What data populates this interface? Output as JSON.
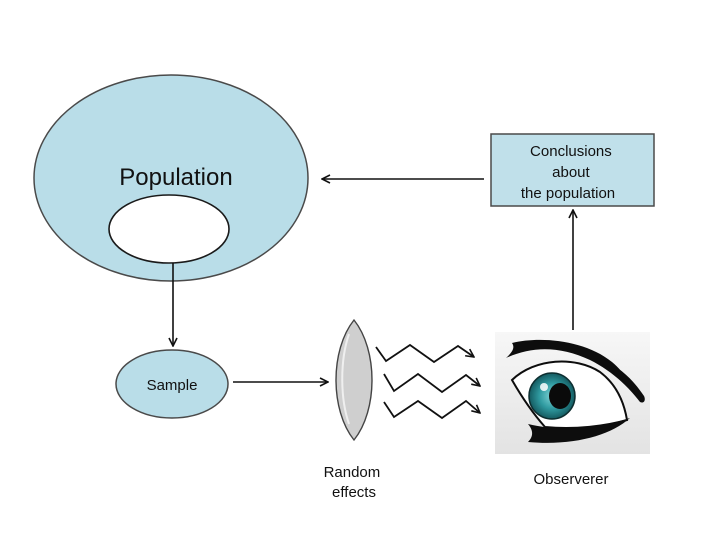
{
  "diagram": {
    "population_label": "Population",
    "sample_label": "Sample",
    "conclusions_lines": [
      "Conclusions",
      "about",
      "the population"
    ],
    "random_effects_lines": [
      "Random",
      "effects"
    ],
    "observer_label": "Observerer"
  },
  "colors": {
    "light_blue_fill": "#b9dde8",
    "box_fill": "#c0e0ea",
    "outline": "#4a4a4a",
    "arrow": "#111111",
    "lens_fill": "#cfcfcf",
    "iris": "#2f8f93"
  },
  "icons": {
    "lens": "lens-icon",
    "waves": "zigzag-wave-icon",
    "observer": "eye-icon"
  }
}
